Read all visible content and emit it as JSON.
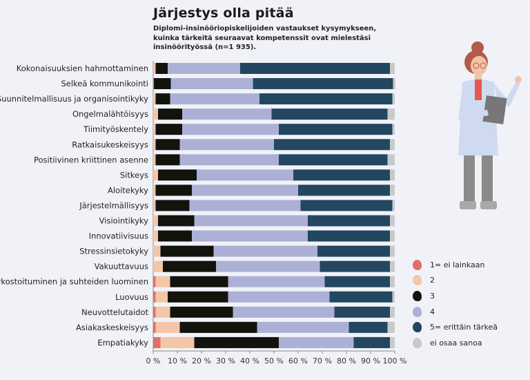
{
  "title": "Järjestys olla pitää",
  "subtitle": "Diplomi-insinööriopiskelijoiden vastaukset kysymykseen, kuinka tärkeitä seuraavat kompetenssit ovat mielestäsi insinöörityössä (n=1 935).",
  "chart_data": {
    "type": "bar",
    "orientation": "horizontal",
    "stacked": true,
    "title": "Järjestys olla pitää",
    "xlim": [
      0,
      100
    ],
    "x_ticks": [
      "0 %",
      "10 %",
      "20 %",
      "30 %",
      "40 %",
      "50 %",
      "60 %",
      "70 %",
      "80 %",
      "90 %",
      "100 %"
    ],
    "legend_position": "right",
    "categories": [
      "Kokonaisuuksien hahmottaminen",
      "Selkeä kommunikointi",
      "Suunnitelmallisuus ja organisointikyky",
      "Ongelmalähtöisyys",
      "Tiimityöskentely",
      "Ratkaisukeskeisyys",
      "Positiivinen kriittinen asenne",
      "Sitkeys",
      "Aloitekyky",
      "Järjestelmällisyys",
      "Visiointikyky",
      "Innovatiivisuus",
      "Stressinsietokyky",
      "Vakuuttavuus",
      "Verkostoituminen ja suhteiden luominen",
      "Luovuus",
      "Neuvottelutaidot",
      "Asiakaskeskeisyys",
      "Empatiakyky"
    ],
    "series": [
      {
        "name": "1= ei lainkaan",
        "color": "#e07069",
        "values": [
          0,
          0.3,
          0,
          0,
          0,
          0,
          0,
          0,
          0,
          0,
          0,
          0,
          0,
          0,
          1,
          1,
          1,
          1,
          3
        ]
      },
      {
        "name": "2",
        "color": "#f4c6a8",
        "values": [
          1,
          0,
          1,
          2,
          1,
          1,
          1,
          2,
          1,
          1,
          2,
          2,
          3,
          4,
          6,
          5,
          6,
          10,
          14
        ]
      },
      {
        "name": "3",
        "color": "#13130d",
        "values": [
          5,
          7,
          6,
          10,
          11,
          10,
          10,
          16,
          15,
          14,
          15,
          14,
          22,
          22,
          24,
          25,
          26,
          32,
          35
        ]
      },
      {
        "name": "4",
        "color": "#adb0d6",
        "values": [
          30,
          34,
          37,
          37,
          40,
          39,
          41,
          40,
          44,
          46,
          47,
          48,
          43,
          43,
          40,
          42,
          42,
          38,
          31
        ]
      },
      {
        "name": "5= erittäin tärkeä",
        "color": "#22475f",
        "values": [
          62,
          58,
          55,
          48,
          47,
          48,
          45,
          40,
          38,
          38,
          34,
          34,
          30,
          29,
          27,
          26,
          23,
          16,
          15
        ]
      },
      {
        "name": "ei osaa sanoa",
        "color": "#c8c9cb",
        "values": [
          2,
          1,
          1,
          3,
          1,
          2,
          3,
          2,
          2,
          1,
          2,
          2,
          2,
          2,
          2,
          1,
          2,
          3,
          2
        ]
      }
    ]
  }
}
